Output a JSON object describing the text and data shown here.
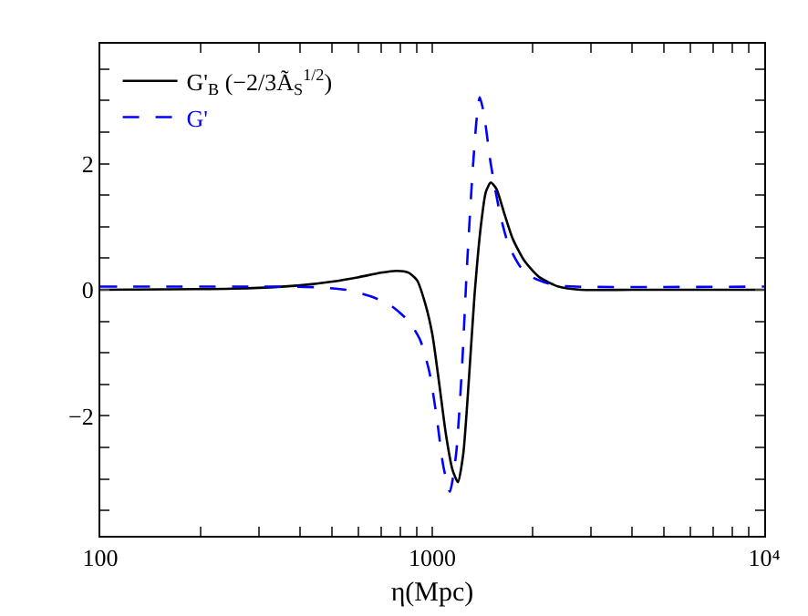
{
  "chart_data": {
    "type": "line",
    "xlabel": "η(Mpc)",
    "log": "x",
    "xlim": [
      100,
      10000
    ],
    "ylim": [
      -3.9,
      3.9
    ],
    "xticks": [
      100,
      {
        "value": 200,
        "label": null
      },
      {
        "value": 300,
        "label": null
      },
      {
        "value": 400,
        "label": null
      },
      {
        "value": 500,
        "label": null
      },
      {
        "value": 600,
        "label": null
      },
      {
        "value": 700,
        "label": null
      },
      {
        "value": 800,
        "label": null
      },
      {
        "value": 900,
        "label": null
      },
      1000,
      {
        "value": 2000,
        "label": null
      },
      {
        "value": 3000,
        "label": null
      },
      {
        "value": 4000,
        "label": null
      },
      {
        "value": 5000,
        "label": null
      },
      {
        "value": 6000,
        "label": null
      },
      {
        "value": 7000,
        "label": null
      },
      {
        "value": 8000,
        "label": null
      },
      {
        "value": 9000,
        "label": null
      },
      {
        "value": 10000,
        "label": "10⁴"
      }
    ],
    "yticks": [
      {
        "value": -3.5,
        "label": null
      },
      {
        "value": -3,
        "label": null
      },
      {
        "value": -2.5,
        "label": null
      },
      -2,
      {
        "value": -1.5,
        "label": null
      },
      {
        "value": -1,
        "label": null
      },
      {
        "value": -0.5,
        "label": null
      },
      0,
      {
        "value": 0.5,
        "label": null
      },
      {
        "value": 1,
        "label": null
      },
      {
        "value": 1.5,
        "label": null
      },
      2,
      {
        "value": 2.5,
        "label": null
      },
      {
        "value": 3,
        "label": null
      },
      {
        "value": 3.5,
        "label": null
      }
    ],
    "grid": false,
    "legend": "top left",
    "marker": "none",
    "series": [
      {
        "name": "G'$_{B}$ (−2/3Ã$_{S}$$^{1/2}$)",
        "color": "#000000",
        "line_style": "solid",
        "x": [
          100,
          200,
          300,
          400,
          500,
          600,
          700,
          780,
          850,
          900,
          950,
          1000,
          1050,
          1100,
          1150,
          1195,
          1240,
          1290,
          1340,
          1400,
          1450,
          1500,
          1560,
          1650,
          1750,
          1900,
          2100,
          2400,
          2800,
          4000,
          10000
        ],
        "values": [
          0,
          0.01,
          0.03,
          0.07,
          0.13,
          0.2,
          0.27,
          0.3,
          0.27,
          0.15,
          -0.2,
          -0.7,
          -1.5,
          -2.3,
          -2.85,
          -3.05,
          -2.6,
          -1.4,
          -0.1,
          1.0,
          1.55,
          1.7,
          1.6,
          1.2,
          0.8,
          0.45,
          0.2,
          0.05,
          0,
          0,
          0
        ]
      },
      {
        "name": "G'",
        "color": "#0000ff",
        "line_style": "dashed",
        "x": [
          100,
          300,
          450,
          550,
          650,
          750,
          850,
          920,
          980,
          1030,
          1080,
          1130,
          1180,
          1230,
          1270,
          1320,
          1360,
          1390,
          1430,
          1500,
          1600,
          1700,
          1850,
          2000,
          2300,
          2700,
          10000
        ],
        "values": [
          0.05,
          0.05,
          0.04,
          0,
          -0.1,
          -0.25,
          -0.5,
          -0.8,
          -1.3,
          -2.0,
          -2.8,
          -3.2,
          -2.6,
          -1.2,
          0.3,
          1.8,
          2.7,
          3.05,
          2.8,
          2.0,
          1.2,
          0.7,
          0.35,
          0.2,
          0.08,
          0.05,
          0.05
        ]
      }
    ]
  }
}
